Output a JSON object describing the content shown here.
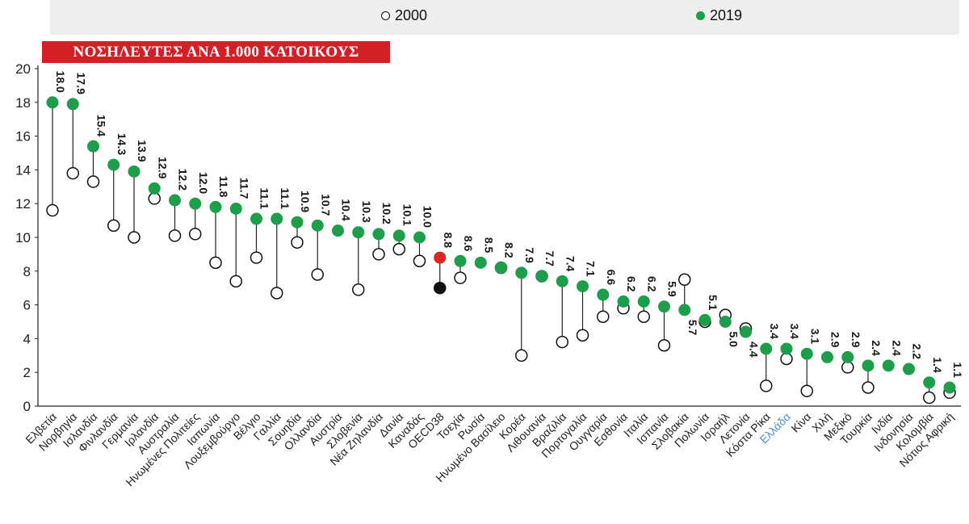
{
  "chart_data": {
    "type": "dumbbell",
    "title": "ΝΟΣΗΛΕΥΤΕΣ ΑΝΑ 1.000 ΚΑΤΟΙΚΟΥΣ",
    "xlabel": "",
    "ylabel": "",
    "ylim": [
      0,
      20
    ],
    "yticks": [
      "0",
      "2",
      "4",
      "6",
      "8",
      "10",
      "12",
      "14",
      "16",
      "18",
      "20"
    ],
    "grid": false,
    "legend_position": "top",
    "categories": [
      "Ελβετία",
      "Νορβηγία",
      "Ισλανδία",
      "Φινλανδία",
      "Γερμανία",
      "Ιρλανδία",
      "Αυστραλία",
      "Ηνωμένες Πολιτείες",
      "Ιαπωνία",
      "Λουξεμβούργο",
      "Βέλγιο",
      "Γαλλία",
      "Σουηδία",
      "Ολλανδία",
      "Αυστρία",
      "Σλοβενία",
      "Νέα Ζηλανδία",
      "Δανία",
      "Καναδάς",
      "OECD38",
      "Τσεχία",
      "Ρωσία",
      "Ηνωμένο Βασίλειο",
      "Κορέα",
      "Λιθουανία",
      "Βραζιλία",
      "Πορτογαλία",
      "Ουγγαρία",
      "Εσθονία",
      "Ιταλία",
      "Ισπανία",
      "Σλοβακία",
      "Πολωνία",
      "Ισραήλ",
      "Λετονία",
      "Κόστα Ρίκα",
      "Ελλάδα",
      "Κίνα",
      "Χιλή",
      "Μεξικό",
      "Τουρκία",
      "Ινδία",
      "Ινδονησία",
      "Κολομβία",
      "Νότιος Αφρική"
    ],
    "highlight_categories": [
      "Ελλάδα"
    ],
    "series": [
      {
        "name": "2000",
        "values": [
          11.6,
          13.8,
          13.3,
          10.7,
          10.0,
          12.3,
          10.1,
          10.2,
          8.5,
          7.4,
          8.8,
          6.7,
          9.7,
          7.8,
          null,
          6.9,
          9.0,
          9.3,
          8.6,
          7.0,
          7.6,
          null,
          8.2,
          3.0,
          7.7,
          3.8,
          4.2,
          5.3,
          5.8,
          5.3,
          3.6,
          7.5,
          5.0,
          5.4,
          4.6,
          1.2,
          2.8,
          0.9,
          null,
          2.3,
          1.1,
          null,
          null,
          0.5,
          0.8
        ]
      },
      {
        "name": "2019",
        "values": [
          18.0,
          17.9,
          15.4,
          14.3,
          13.9,
          12.9,
          12.2,
          12.0,
          11.8,
          11.7,
          11.1,
          11.1,
          10.9,
          10.7,
          10.4,
          10.3,
          10.2,
          10.1,
          10.0,
          8.8,
          8.6,
          8.5,
          8.2,
          7.9,
          7.7,
          7.4,
          7.1,
          6.6,
          6.2,
          6.2,
          5.9,
          5.7,
          5.1,
          5.0,
          4.4,
          3.4,
          3.4,
          3.1,
          2.9,
          2.9,
          2.4,
          2.4,
          2.2,
          1.4,
          1.1
        ]
      }
    ],
    "value_labels": [
      "18.0",
      "17.9",
      "15.4",
      "14.3",
      "13.9",
      "12.9",
      "12.2",
      "12.0",
      "11.8",
      "11.7",
      "11.1",
      "11.1",
      "10.9",
      "10.7",
      "10.4",
      "10.3",
      "10.2",
      "10.1",
      "10.0",
      "8.8",
      "8.6",
      "8.5",
      "8.2",
      "7.9",
      "7.7",
      "7.4",
      "7.1",
      "6.6",
      "6.2",
      "6.2",
      "5.9",
      "5.7",
      "5.1",
      "5.0",
      "4.4",
      "3.4",
      "3.4",
      "3.1",
      "2.9",
      "2.9",
      "2.4",
      "2.4",
      "2.2",
      "1.4",
      "1.1"
    ],
    "colors": {
      "2019": "#1e9e4a",
      "2000_fill": "#ffffff",
      "2000_stroke": "#111111",
      "oecd_2019": "#e02424",
      "oecd_2000": "#111111",
      "highlight_label": "#4a90c8"
    }
  },
  "legend": {
    "items": [
      {
        "label": "2000"
      },
      {
        "label": "2019"
      }
    ]
  }
}
